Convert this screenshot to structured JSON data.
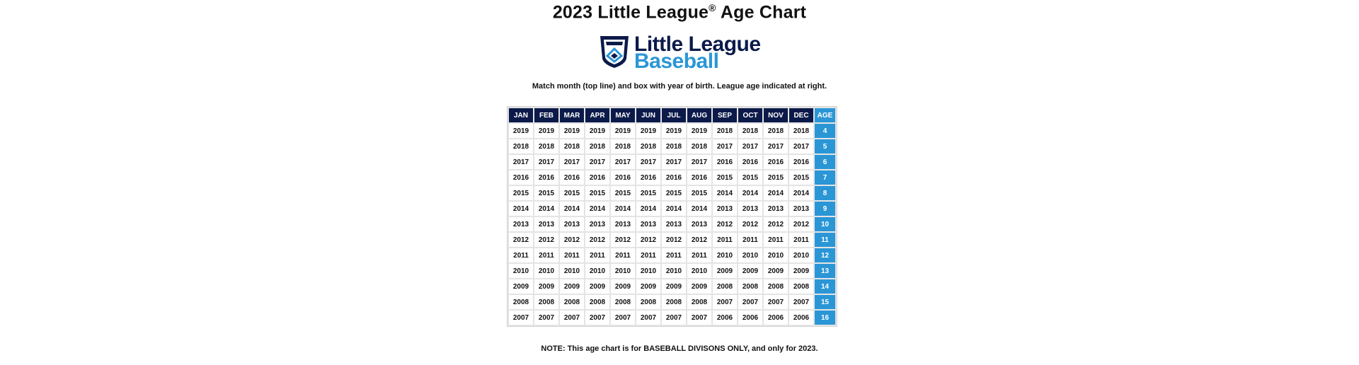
{
  "header": {
    "title": "2023 Little League",
    "title_mark": "®",
    "title_suffix": " Age Chart"
  },
  "logo": {
    "icon": "little-league-shield-icon",
    "line1": "Little League",
    "line2": "Baseball",
    "colors": {
      "navy": "#0c1a4a",
      "blue": "#2a96d6"
    }
  },
  "instructions": "Match month (top line) and box with year of birth. League age indicated at right.",
  "table": {
    "months": [
      "JAN",
      "FEB",
      "MAR",
      "APR",
      "MAY",
      "JUN",
      "JUL",
      "AUG",
      "SEP",
      "OCT",
      "NOV",
      "DEC"
    ],
    "age_header": "AGE",
    "rows": [
      {
        "years": [
          "2019",
          "2019",
          "2019",
          "2019",
          "2019",
          "2019",
          "2019",
          "2019",
          "2018",
          "2018",
          "2018",
          "2018"
        ],
        "age": "4"
      },
      {
        "years": [
          "2018",
          "2018",
          "2018",
          "2018",
          "2018",
          "2018",
          "2018",
          "2018",
          "2017",
          "2017",
          "2017",
          "2017"
        ],
        "age": "5"
      },
      {
        "years": [
          "2017",
          "2017",
          "2017",
          "2017",
          "2017",
          "2017",
          "2017",
          "2017",
          "2016",
          "2016",
          "2016",
          "2016"
        ],
        "age": "6"
      },
      {
        "years": [
          "2016",
          "2016",
          "2016",
          "2016",
          "2016",
          "2016",
          "2016",
          "2016",
          "2015",
          "2015",
          "2015",
          "2015"
        ],
        "age": "7"
      },
      {
        "years": [
          "2015",
          "2015",
          "2015",
          "2015",
          "2015",
          "2015",
          "2015",
          "2015",
          "2014",
          "2014",
          "2014",
          "2014"
        ],
        "age": "8"
      },
      {
        "years": [
          "2014",
          "2014",
          "2014",
          "2014",
          "2014",
          "2014",
          "2014",
          "2014",
          "2013",
          "2013",
          "2013",
          "2013"
        ],
        "age": "9"
      },
      {
        "years": [
          "2013",
          "2013",
          "2013",
          "2013",
          "2013",
          "2013",
          "2013",
          "2013",
          "2012",
          "2012",
          "2012",
          "2012"
        ],
        "age": "10"
      },
      {
        "years": [
          "2012",
          "2012",
          "2012",
          "2012",
          "2012",
          "2012",
          "2012",
          "2012",
          "2011",
          "2011",
          "2011",
          "2011"
        ],
        "age": "11"
      },
      {
        "years": [
          "2011",
          "2011",
          "2011",
          "2011",
          "2011",
          "2011",
          "2011",
          "2011",
          "2010",
          "2010",
          "2010",
          "2010"
        ],
        "age": "12"
      },
      {
        "years": [
          "2010",
          "2010",
          "2010",
          "2010",
          "2010",
          "2010",
          "2010",
          "2010",
          "2009",
          "2009",
          "2009",
          "2009"
        ],
        "age": "13"
      },
      {
        "years": [
          "2009",
          "2009",
          "2009",
          "2009",
          "2009",
          "2009",
          "2009",
          "2009",
          "2008",
          "2008",
          "2008",
          "2008"
        ],
        "age": "14"
      },
      {
        "years": [
          "2008",
          "2008",
          "2008",
          "2008",
          "2008",
          "2008",
          "2008",
          "2008",
          "2007",
          "2007",
          "2007",
          "2007"
        ],
        "age": "15"
      },
      {
        "years": [
          "2007",
          "2007",
          "2007",
          "2007",
          "2007",
          "2007",
          "2007",
          "2007",
          "2006",
          "2006",
          "2006",
          "2006"
        ],
        "age": "16"
      }
    ],
    "colors": {
      "header_bg": "#0c1a4a",
      "age_bg": "#2a96d6",
      "cell_bg": "#ffffff"
    }
  },
  "note": "NOTE: This age chart is for BASEBALL DIVISONS ONLY, and only for 2023."
}
